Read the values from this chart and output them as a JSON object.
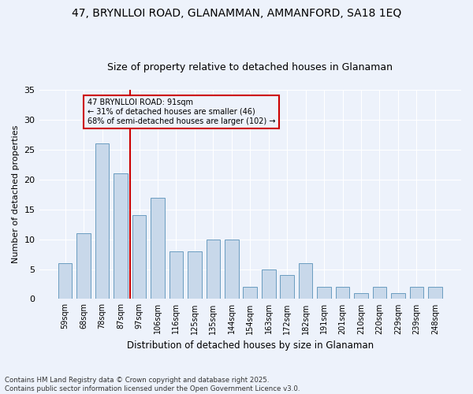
{
  "title_line1": "47, BRYNLLOI ROAD, GLANAMMAN, AMMANFORD, SA18 1EQ",
  "title_line2": "Size of property relative to detached houses in Glanaman",
  "xlabel": "Distribution of detached houses by size in Glanaman",
  "ylabel": "Number of detached properties",
  "categories": [
    "59sqm",
    "68sqm",
    "78sqm",
    "87sqm",
    "97sqm",
    "106sqm",
    "116sqm",
    "125sqm",
    "135sqm",
    "144sqm",
    "154sqm",
    "163sqm",
    "172sqm",
    "182sqm",
    "191sqm",
    "201sqm",
    "210sqm",
    "220sqm",
    "229sqm",
    "239sqm",
    "248sqm"
  ],
  "values": [
    6,
    11,
    26,
    21,
    14,
    17,
    8,
    8,
    10,
    10,
    2,
    5,
    4,
    6,
    2,
    2,
    1,
    2,
    1,
    2,
    2
  ],
  "bar_color": "#c8d8ea",
  "bar_edge_color": "#6a9cc0",
  "vline_x_index": 3.5,
  "vline_color": "#cc0000",
  "annotation_text": "47 BRYNLLOI ROAD: 91sqm\n← 31% of detached houses are smaller (46)\n68% of semi-detached houses are larger (102) →",
  "annotation_box_color": "#cc0000",
  "ylim": [
    0,
    35
  ],
  "yticks": [
    0,
    5,
    10,
    15,
    20,
    25,
    30,
    35
  ],
  "footnote": "Contains HM Land Registry data © Crown copyright and database right 2025.\nContains public sector information licensed under the Open Government Licence v3.0.",
  "background_color": "#edf2fb",
  "grid_color": "#ffffff",
  "title_fontsize": 10,
  "subtitle_fontsize": 9,
  "bar_width": 0.75
}
